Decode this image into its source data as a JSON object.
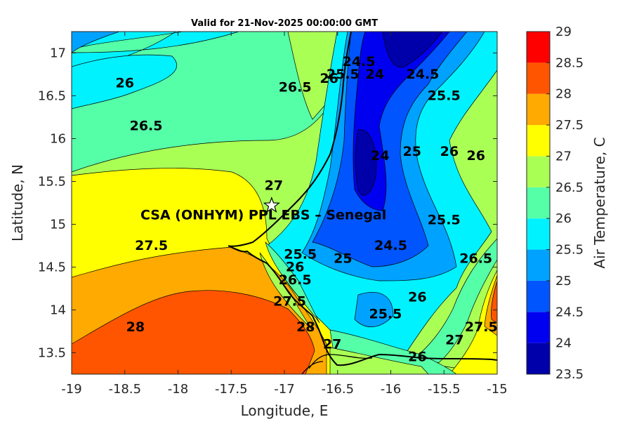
{
  "chart_data": {
    "type": "heatmap",
    "title": "Valid for 21-Nov-2025 00:00:00 GMT",
    "xlabel": "Longitude, E",
    "ylabel": "Latitude, N",
    "xlim": [
      -19,
      -15
    ],
    "ylim": [
      13.25,
      17.25
    ],
    "x_ticks": [
      "-19",
      "-18.5",
      "-18",
      "-17.5",
      "-17",
      "-16.5",
      "-16",
      "-15.5",
      "-15"
    ],
    "y_ticks": [
      "13.5",
      "14",
      "14.5",
      "15",
      "15.5",
      "16",
      "16.5",
      "17"
    ],
    "colorbar": {
      "label": "Air Temperature, C",
      "range": [
        23.5,
        29
      ],
      "ticks": [
        "23.5",
        "24",
        "24.5",
        "25",
        "25.5",
        "26",
        "26.5",
        "27",
        "27.5",
        "28",
        "28.5",
        "29"
      ],
      "colors": [
        "#0000aa",
        "#0000f0",
        "#0055ff",
        "#00a2ff",
        "#00f2ff",
        "#55ffa8",
        "#aaff55",
        "#ffff00",
        "#ffaa00",
        "#ff5500",
        "#ff0000"
      ]
    },
    "site": {
      "name": "CSA (ONHYM) PPL EBS  – Senegal",
      "lon": -17.12,
      "lat": 15.22
    },
    "contour_labels": [
      {
        "text": "26",
        "lon": -18.5,
        "lat": 16.6
      },
      {
        "text": "26.5",
        "lon": -18.3,
        "lat": 16.1
      },
      {
        "text": "26.5",
        "lon": -16.9,
        "lat": 16.55
      },
      {
        "text": "26",
        "lon": -16.58,
        "lat": 16.65
      },
      {
        "text": "25.5",
        "lon": -16.45,
        "lat": 16.7
      },
      {
        "text": "24.5",
        "lon": -16.3,
        "lat": 16.85
      },
      {
        "text": "24",
        "lon": -16.15,
        "lat": 16.7
      },
      {
        "text": "24.5",
        "lon": -15.7,
        "lat": 16.7
      },
      {
        "text": "25.5",
        "lon": -15.5,
        "lat": 16.45
      },
      {
        "text": "24",
        "lon": -16.1,
        "lat": 15.75
      },
      {
        "text": "25",
        "lon": -15.8,
        "lat": 15.8
      },
      {
        "text": "26",
        "lon": -15.45,
        "lat": 15.8
      },
      {
        "text": "26",
        "lon": -15.2,
        "lat": 15.75
      },
      {
        "text": "27",
        "lon": -17.1,
        "lat": 15.4
      },
      {
        "text": "25.5",
        "lon": -15.5,
        "lat": 15.0
      },
      {
        "text": "27.5",
        "lon": -18.25,
        "lat": 14.7
      },
      {
        "text": "25.5",
        "lon": -16.85,
        "lat": 14.6
      },
      {
        "text": "26",
        "lon": -16.9,
        "lat": 14.45
      },
      {
        "text": "26.5",
        "lon": -16.9,
        "lat": 14.3
      },
      {
        "text": "25",
        "lon": -16.45,
        "lat": 14.55
      },
      {
        "text": "24.5",
        "lon": -16.0,
        "lat": 14.7
      },
      {
        "text": "26.5",
        "lon": -15.2,
        "lat": 14.55
      },
      {
        "text": "27.5",
        "lon": -16.95,
        "lat": 14.05
      },
      {
        "text": "26",
        "lon": -15.75,
        "lat": 14.1
      },
      {
        "text": "25.5",
        "lon": -16.05,
        "lat": 13.9
      },
      {
        "text": "28",
        "lon": -18.4,
        "lat": 13.75
      },
      {
        "text": "28",
        "lon": -16.8,
        "lat": 13.75
      },
      {
        "text": "27",
        "lon": -16.55,
        "lat": 13.55
      },
      {
        "text": "27",
        "lon": -15.4,
        "lat": 13.6
      },
      {
        "text": "27.5",
        "lon": -15.15,
        "lat": 13.75
      },
      {
        "text": "26",
        "lon": -15.75,
        "lat": 13.4
      }
    ]
  }
}
